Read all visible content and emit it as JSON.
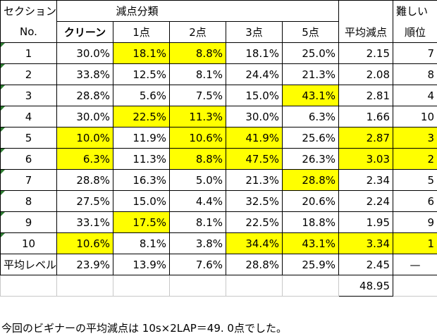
{
  "header": {
    "section": "セクション",
    "deduction_classification": "減点分類",
    "difficulty": "難しい",
    "no": "No.",
    "clean": "クリーン",
    "p1": "1点",
    "p2": "2点",
    "p3": "3点",
    "p5": "5点",
    "avg": "平均減点",
    "rank": "順位"
  },
  "rows": [
    {
      "no": "1",
      "clean": "30.0%",
      "p1": "18.1%",
      "p2": "8.8%",
      "p3": "18.1%",
      "p5": "25.0%",
      "avg": "2.15",
      "rank": "7",
      "hl": [
        "p1",
        "p2"
      ]
    },
    {
      "no": "2",
      "clean": "33.8%",
      "p1": "12.5%",
      "p2": "8.1%",
      "p3": "24.4%",
      "p5": "21.3%",
      "avg": "2.08",
      "rank": "8",
      "hl": []
    },
    {
      "no": "3",
      "clean": "28.8%",
      "p1": "5.6%",
      "p2": "7.5%",
      "p3": "15.0%",
      "p5": "43.1%",
      "avg": "2.81",
      "rank": "4",
      "hl": [
        "p5"
      ]
    },
    {
      "no": "4",
      "clean": "30.0%",
      "p1": "22.5%",
      "p2": "11.3%",
      "p3": "30.0%",
      "p5": "6.3%",
      "avg": "1.66",
      "rank": "10",
      "hl": [
        "p1",
        "p2"
      ]
    },
    {
      "no": "5",
      "clean": "10.0%",
      "p1": "11.9%",
      "p2": "10.6%",
      "p3": "41.9%",
      "p5": "25.6%",
      "avg": "2.87",
      "rank": "3",
      "hl": [
        "clean",
        "p2",
        "p3",
        "avg",
        "rank"
      ]
    },
    {
      "no": "6",
      "clean": "6.3%",
      "p1": "11.3%",
      "p2": "8.8%",
      "p3": "47.5%",
      "p5": "26.3%",
      "avg": "3.03",
      "rank": "2",
      "hl": [
        "clean",
        "p2",
        "p3",
        "avg",
        "rank"
      ]
    },
    {
      "no": "7",
      "clean": "28.8%",
      "p1": "16.3%",
      "p2": "5.0%",
      "p3": "21.3%",
      "p5": "28.8%",
      "avg": "2.34",
      "rank": "5",
      "hl": [
        "p5"
      ]
    },
    {
      "no": "8",
      "clean": "27.5%",
      "p1": "15.0%",
      "p2": "4.4%",
      "p3": "32.5%",
      "p5": "20.6%",
      "avg": "2.24",
      "rank": "6",
      "hl": []
    },
    {
      "no": "9",
      "clean": "33.1%",
      "p1": "17.5%",
      "p2": "8.1%",
      "p3": "22.5%",
      "p5": "18.8%",
      "avg": "1.95",
      "rank": "9",
      "hl": [
        "p1"
      ]
    },
    {
      "no": "10",
      "clean": "10.6%",
      "p1": "8.1%",
      "p2": "3.8%",
      "p3": "34.4%",
      "p5": "43.1%",
      "avg": "3.34",
      "rank": "1",
      "hl": [
        "clean",
        "p3",
        "p5",
        "avg",
        "rank"
      ]
    }
  ],
  "average_row": {
    "label": "平均レベル",
    "clean": "23.9%",
    "p1": "13.9%",
    "p2": "7.6%",
    "p3": "28.8%",
    "p5": "25.9%",
    "avg": "2.45",
    "rank": "—"
  },
  "total": "48.95",
  "footer_text": "今回のビギナーの平均減点は 10s×2LAP＝49. 0点でした。",
  "colors": {
    "highlight": "#ffff00",
    "marker": "#2e7d32"
  }
}
